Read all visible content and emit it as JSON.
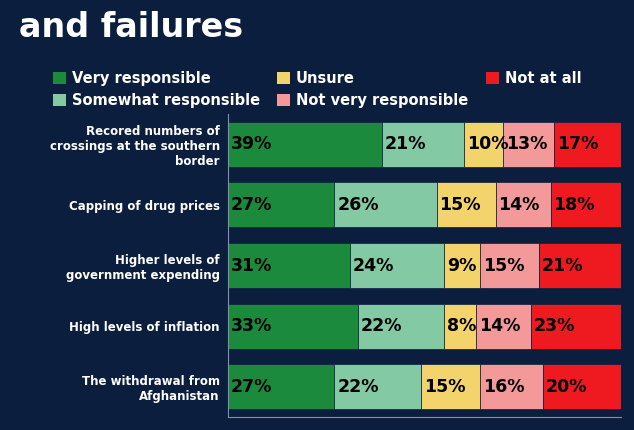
{
  "chart_data": {
    "type": "bar",
    "orientation": "horizontal",
    "stacked": true,
    "title": "and failures",
    "categories": [
      "Recored numbers of crossings at the southern border",
      "Capping of drug prices",
      "Higher levels of government expending",
      "High levels of inflation",
      "The withdrawal from Afghanistan"
    ],
    "series": [
      {
        "name": "Very responsible",
        "color": "#1b8a3c",
        "values": [
          39,
          27,
          31,
          33,
          27
        ],
        "value_labels": [
          "39%",
          "27%",
          "31%",
          "33%",
          "27%"
        ]
      },
      {
        "name": "Somewhat responsible",
        "color": "#82c9a4",
        "values": [
          21,
          26,
          24,
          22,
          22
        ],
        "value_labels": [
          "21%",
          "26%",
          "24%",
          "22%",
          "22%"
        ]
      },
      {
        "name": "Unsure",
        "color": "#f3d36b",
        "values": [
          10,
          15,
          9,
          8,
          15
        ],
        "value_labels": [
          "10%",
          "15%",
          "9%",
          "8%",
          "15%"
        ]
      },
      {
        "name": "Not very responsible",
        "color": "#f4999a",
        "values": [
          13,
          14,
          15,
          14,
          16
        ],
        "value_labels": [
          "13%",
          "14%",
          "15%",
          "14%",
          "16%"
        ]
      },
      {
        "name": "Not at all",
        "color": "#ee1a1f",
        "values": [
          17,
          18,
          21,
          23,
          20
        ],
        "value_labels": [
          "17%",
          "18%",
          "21%",
          "23%",
          "20%"
        ]
      }
    ],
    "xlim": [
      0,
      100
    ],
    "xticks": [],
    "tick_labels": "y",
    "data_labels": true,
    "legend": "upper center",
    "grid": false
  }
}
